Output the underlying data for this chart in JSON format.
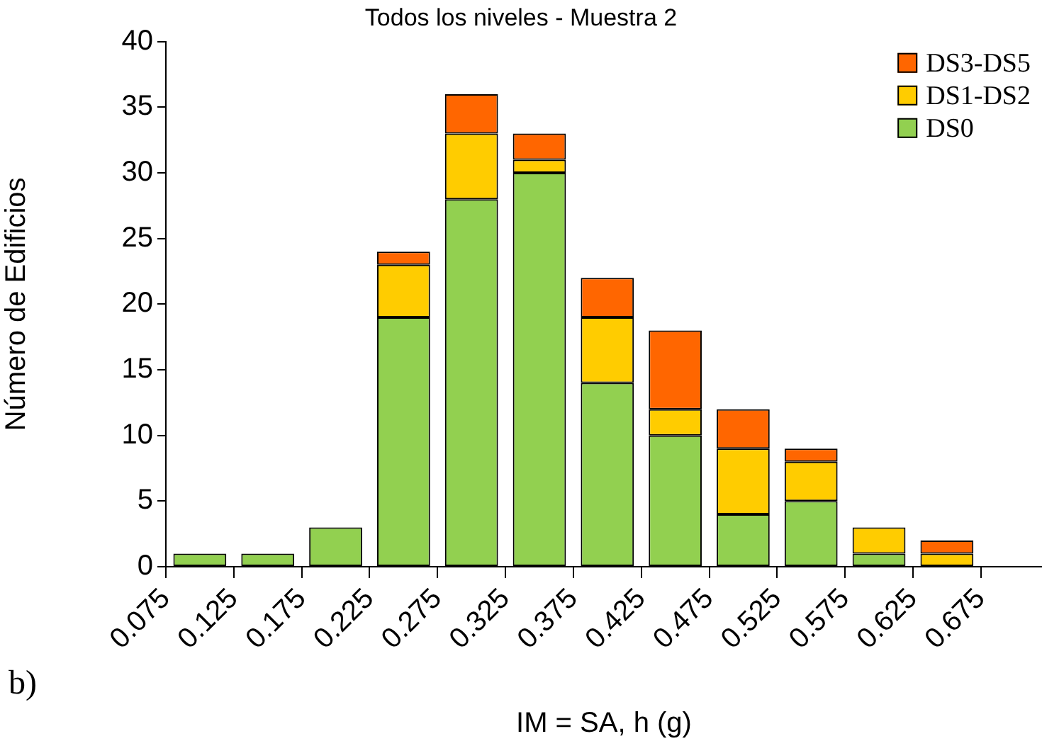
{
  "chart_data": {
    "type": "bar",
    "title": "Todos los niveles - Muestra 2",
    "xlabel": "IM = SA, h (g)",
    "ylabel": "Número de Edificios",
    "annotations": [
      "b)"
    ],
    "x": [
      0.1,
      0.15,
      0.2,
      0.25,
      0.3,
      0.35,
      0.4,
      0.45,
      0.5,
      0.55,
      0.6,
      0.65
    ],
    "stacked": true,
    "series": [
      {
        "name": "DS0",
        "color": "#92d050",
        "values": [
          1,
          1,
          3,
          19,
          28,
          30,
          14,
          10,
          4,
          5,
          1,
          0
        ]
      },
      {
        "name": "DS1-DS2",
        "color": "#ffcc00",
        "values": [
          0,
          0,
          0,
          4,
          5,
          1,
          5,
          2,
          5,
          3,
          2,
          1
        ]
      },
      {
        "name": "DS3-DS5",
        "color": "#ff6600",
        "values": [
          0,
          0,
          0,
          1,
          3,
          2,
          3,
          6,
          3,
          1,
          0,
          1
        ]
      }
    ],
    "xlim": [
      0.075,
      0.72
    ],
    "xticks": [
      0.075,
      0.125,
      0.175,
      0.225,
      0.275,
      0.325,
      0.375,
      0.425,
      0.475,
      0.525,
      0.575,
      0.625,
      0.675
    ],
    "ylim": [
      0,
      40
    ],
    "yticks": [
      0,
      5,
      10,
      15,
      20,
      25,
      30,
      35,
      40
    ],
    "grid": false,
    "legend": "top right"
  }
}
